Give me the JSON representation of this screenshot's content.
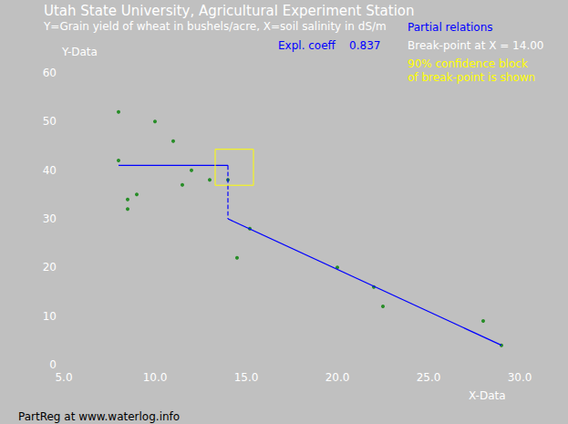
{
  "chart_data": {
    "type": "scatter",
    "title": "Utah State University, Agricultural Experiment Station",
    "subtitle": "Y=Grain yield of wheat in bushels/acre, X=soil salinity in dS/m",
    "x_label": "X-Data",
    "y_label": "Y-Data",
    "footer": "PartReg at www.waterlog.info",
    "annotations": [
      {
        "text": "Expl. coeff    0.837",
        "color": "#0000ff"
      },
      {
        "text": "Partial relations",
        "color": "#0000ff"
      },
      {
        "text": "Break-point at X = 14.00",
        "color": "#ffffff"
      },
      {
        "text": "90% confidence block",
        "color": "#ffff00"
      },
      {
        "text": "of break-point is shown",
        "color": "#ffff00"
      }
    ],
    "series": [
      {
        "type": "scatter",
        "color": "#008000",
        "marker": "circle",
        "x": [
          8,
          8,
          8.5,
          8.5,
          9,
          10,
          11,
          11.5,
          12,
          13,
          14,
          15.2,
          14.5,
          20,
          22,
          22.5,
          28,
          29
        ],
        "values": [
          52,
          42,
          34,
          32,
          35,
          50,
          46,
          37,
          40,
          38,
          38,
          28,
          22,
          20,
          16,
          12,
          9,
          4
        ]
      },
      {
        "type": "line",
        "color": "#0000ff",
        "line_style": "solid",
        "x": [
          8,
          14
        ],
        "values": [
          41,
          41
        ]
      },
      {
        "type": "line",
        "color": "#0000ff",
        "line_style": "dashed",
        "x": [
          14,
          14
        ],
        "values": [
          41,
          30
        ]
      },
      {
        "type": "line",
        "color": "#0000ff",
        "line_style": "solid",
        "x": [
          14,
          29
        ],
        "values": [
          30,
          4
        ]
      }
    ],
    "break_point_block": {
      "x": [
        13.3,
        15.4
      ],
      "y": [
        36.9,
        44.3
      ],
      "color": "#ffff00"
    },
    "xlim": [
      5,
      30
    ],
    "xticks": [
      {
        "value": 5,
        "label": "5.0"
      },
      {
        "value": 10,
        "label": "10.0"
      },
      {
        "value": 15,
        "label": "15.0"
      },
      {
        "value": 20,
        "label": "20.0"
      },
      {
        "value": 25,
        "label": "25.0"
      },
      {
        "value": 30,
        "label": "30.0"
      }
    ],
    "ylim": [
      0,
      60
    ],
    "yticks": [
      0,
      10,
      20,
      30,
      40,
      50,
      60
    ],
    "grid": false
  }
}
